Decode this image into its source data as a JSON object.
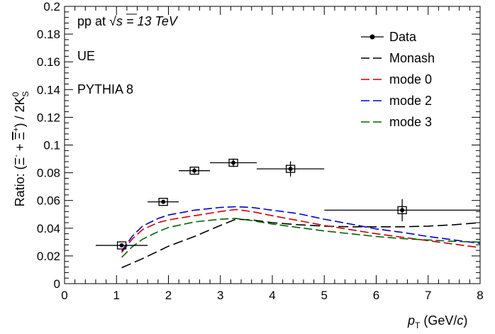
{
  "chart_data": {
    "type": "line",
    "title": "",
    "annotations": {
      "collision": "pp at",
      "sqrt": "√",
      "energy_rest": "s = 13 TeV",
      "region": "UE",
      "generator": "PYTHIA 8"
    },
    "xlabel": {
      "symbol": "p",
      "subscript": "T",
      "unit_prefix": "(GeV/",
      "unit_italic": "c",
      "unit_suffix": ")"
    },
    "ylabel": "Ratio: (Ξ⁻ + Ξ̄⁺) / 2K⁰S",
    "ylabel_parts": {
      "prefix": "Ratio: (",
      "xi": "Ξ",
      "xi_sup": "-",
      "plus": " + ",
      "xibar": "Ξ",
      "xibar_sup": "+",
      "suffix": ") / 2K",
      "k_sup": "0",
      "k_sub": "S"
    },
    "xlim": [
      0,
      8
    ],
    "ylim": [
      0,
      0.2
    ],
    "xticks": [
      "0",
      "1",
      "2",
      "3",
      "4",
      "5",
      "6",
      "7",
      "8"
    ],
    "yticks": [
      "0",
      "0.02",
      "0.04",
      "0.06",
      "0.08",
      "0.1",
      "0.12",
      "0.14",
      "0.16",
      "0.18",
      "0.2"
    ],
    "grid": false,
    "legend_position": "top-right",
    "data": {
      "name": "Data",
      "color": "#000000",
      "points": [
        {
          "x": 1.1,
          "y": 0.0276,
          "xlow": 0.6,
          "xhigh": 1.6,
          "stat": 0.0005,
          "syst": 0.0009
        },
        {
          "x": 1.9,
          "y": 0.059,
          "xlow": 1.6,
          "xhigh": 2.2,
          "stat": 0.0012,
          "syst": 0.0018
        },
        {
          "x": 2.5,
          "y": 0.0815,
          "xlow": 2.2,
          "xhigh": 2.8,
          "stat": 0.002,
          "syst": 0.0025
        },
        {
          "x": 3.25,
          "y": 0.0872,
          "xlow": 2.8,
          "xhigh": 3.7,
          "stat": 0.003,
          "syst": 0.0025
        },
        {
          "x": 4.35,
          "y": 0.0828,
          "xlow": 3.7,
          "xhigh": 5.0,
          "stat": 0.0055,
          "syst": 0.0025
        },
        {
          "x": 6.5,
          "y": 0.053,
          "xlow": 5.0,
          "xhigh": 8.0,
          "stat": 0.008,
          "syst": 0.0025
        }
      ]
    },
    "series": [
      {
        "name": "Monash",
        "color": "#000000",
        "x": [
          1.1,
          1.5,
          2.0,
          2.5,
          3.0,
          3.3,
          3.6,
          4.0,
          4.5,
          5.0,
          5.5,
          6.0,
          6.5,
          7.0,
          7.5,
          8.0
        ],
        "y": [
          0.0115,
          0.018,
          0.027,
          0.034,
          0.042,
          0.0465,
          0.046,
          0.044,
          0.0425,
          0.0415,
          0.041,
          0.041,
          0.041,
          0.0415,
          0.0425,
          0.044
        ]
      },
      {
        "name": "mode 0",
        "color": "#cc0000",
        "x": [
          1.1,
          1.3,
          1.5,
          1.8,
          2.0,
          2.5,
          3.0,
          3.3,
          3.6,
          4.0,
          4.5,
          5.0,
          5.5,
          6.0,
          6.5,
          7.0,
          7.5,
          8.0
        ],
        "y": [
          0.0225,
          0.032,
          0.039,
          0.044,
          0.046,
          0.049,
          0.052,
          0.0535,
          0.052,
          0.049,
          0.0455,
          0.042,
          0.039,
          0.036,
          0.0335,
          0.031,
          0.0285,
          0.026
        ]
      },
      {
        "name": "mode 2",
        "color": "#0000cc",
        "x": [
          1.1,
          1.3,
          1.5,
          1.8,
          2.0,
          2.5,
          3.0,
          3.3,
          3.6,
          4.0,
          4.5,
          5.0,
          5.5,
          6.0,
          6.5,
          7.0,
          7.5,
          8.0
        ],
        "y": [
          0.0235,
          0.034,
          0.0415,
          0.047,
          0.0495,
          0.053,
          0.055,
          0.0555,
          0.055,
          0.053,
          0.0505,
          0.0465,
          0.043,
          0.0395,
          0.037,
          0.034,
          0.0315,
          0.029
        ]
      },
      {
        "name": "mode 3",
        "color": "#006600",
        "x": [
          1.1,
          1.3,
          1.5,
          1.8,
          2.0,
          2.5,
          3.0,
          3.3,
          3.6,
          4.0,
          4.5,
          5.0,
          5.5,
          6.0,
          6.5,
          7.0,
          7.5,
          8.0
        ],
        "y": [
          0.019,
          0.0265,
          0.032,
          0.0375,
          0.0405,
          0.0445,
          0.0465,
          0.047,
          0.0455,
          0.043,
          0.0405,
          0.038,
          0.036,
          0.034,
          0.0325,
          0.0315,
          0.0305,
          0.03
        ]
      }
    ]
  }
}
